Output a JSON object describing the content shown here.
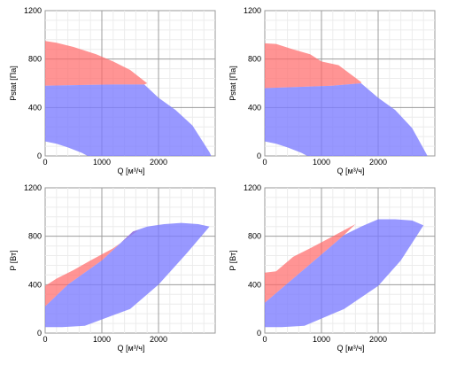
{
  "chart_data": [
    {
      "type": "area",
      "xlabel": "Q [м³/ч]",
      "ylabel": "Pstat [Па]",
      "xlim": [
        0,
        3000
      ],
      "ylim": [
        0,
        1200
      ],
      "xticks": [
        "0",
        "1000",
        "2000"
      ],
      "yticks": [
        "0",
        "400",
        "800",
        "1200"
      ],
      "grid": true,
      "series": [
        {
          "color": "#ff6b6b",
          "x": [
            0,
            200,
            500,
            900,
            1200,
            1500,
            1800,
            1750,
            1200,
            600,
            0
          ],
          "y": [
            950,
            935,
            900,
            840,
            780,
            710,
            600,
            590,
            590,
            585,
            580
          ]
        },
        {
          "color": "#7b7bff",
          "x": [
            0,
            600,
            1200,
            1750,
            2000,
            2300,
            2600,
            2900,
            2930,
            750,
            650,
            400,
            200,
            0
          ],
          "y": [
            580,
            585,
            590,
            590,
            480,
            380,
            250,
            30,
            0,
            0,
            25,
            70,
            100,
            120
          ]
        }
      ]
    },
    {
      "type": "area",
      "xlabel": "Q [м³/ч]",
      "ylabel": "Pstat [Па]",
      "xlim": [
        0,
        3000
      ],
      "ylim": [
        0,
        1200
      ],
      "xticks": [
        "0",
        "1000",
        "2000"
      ],
      "yticks": [
        "0",
        "400",
        "800",
        "1200"
      ],
      "grid": true,
      "series": [
        {
          "color": "#ff6b6b",
          "x": [
            0,
            200,
            500,
            800,
            1000,
            1300,
            1700,
            1700,
            1200,
            600,
            0
          ],
          "y": [
            930,
            925,
            880,
            840,
            780,
            750,
            610,
            600,
            580,
            570,
            560
          ]
        },
        {
          "color": "#7b7bff",
          "x": [
            0,
            600,
            1200,
            1700,
            2000,
            2300,
            2600,
            2800,
            2870,
            750,
            650,
            400,
            200,
            0
          ],
          "y": [
            560,
            570,
            580,
            600,
            480,
            380,
            230,
            60,
            0,
            0,
            25,
            70,
            100,
            120
          ]
        }
      ]
    },
    {
      "type": "area",
      "xlabel": "Q [м³/ч]",
      "ylabel": "P [Вт]",
      "xlim": [
        0,
        3000
      ],
      "ylim": [
        0,
        1200
      ],
      "xticks": [
        "0",
        "1000",
        "2000"
      ],
      "yticks": [
        "0",
        "400",
        "800",
        "1200"
      ],
      "grid": true,
      "series": [
        {
          "color": "#ff6b6b",
          "x": [
            0,
            200,
            500,
            800,
            1200,
            1650,
            1550,
            1000,
            400,
            0
          ],
          "y": [
            390,
            450,
            520,
            600,
            700,
            850,
            840,
            600,
            400,
            220
          ]
        },
        {
          "color": "#7b7bff",
          "x": [
            0,
            400,
            1000,
            1550,
            1800,
            2100,
            2400,
            2700,
            2900,
            2500,
            2000,
            1500,
            700,
            300,
            0
          ],
          "y": [
            220,
            400,
            600,
            840,
            880,
            900,
            910,
            900,
            880,
            660,
            400,
            200,
            60,
            50,
            50
          ]
        }
      ]
    },
    {
      "type": "area",
      "xlabel": "Q [м³/ч]",
      "ylabel": "P [Вт]",
      "xlim": [
        0,
        3000
      ],
      "ylim": [
        0,
        1200
      ],
      "xticks": [
        "0",
        "1000",
        "2000"
      ],
      "yticks": [
        "0",
        "400",
        "800",
        "1200"
      ],
      "grid": true,
      "series": [
        {
          "color": "#ff6b6b",
          "x": [
            0,
            200,
            500,
            800,
            1200,
            1600,
            1400,
            1000,
            500,
            0
          ],
          "y": [
            500,
            510,
            630,
            700,
            800,
            900,
            810,
            650,
            450,
            250
          ]
        },
        {
          "color": "#7b7bff",
          "x": [
            0,
            500,
            1000,
            1400,
            1700,
            2000,
            2300,
            2600,
            2800,
            2400,
            2000,
            1400,
            700,
            300,
            0
          ],
          "y": [
            250,
            450,
            650,
            810,
            880,
            940,
            940,
            930,
            890,
            600,
            390,
            200,
            60,
            50,
            50
          ]
        }
      ]
    }
  ]
}
